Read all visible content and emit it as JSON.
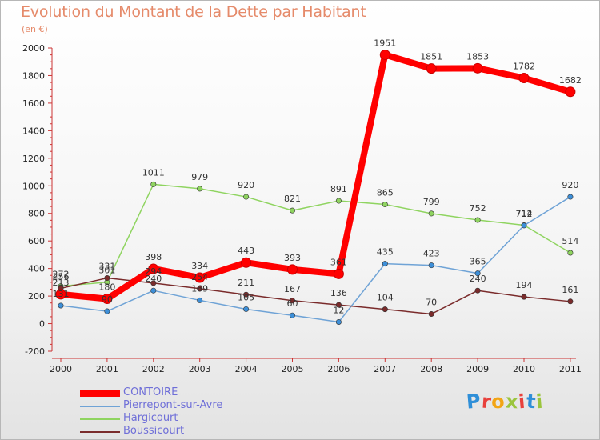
{
  "title": "Evolution du Montant de la Dette par Habitant",
  "subtitle": "(en €)",
  "logo": {
    "text": "Proxiti",
    "letters": [
      {
        "ch": "P",
        "color": "#2f8fd8"
      },
      {
        "ch": "r",
        "color": "#e8413c"
      },
      {
        "ch": "o",
        "color": "#f2a516"
      },
      {
        "ch": "x",
        "color": "#9bc53d"
      },
      {
        "ch": "i",
        "color": "#e8413c"
      },
      {
        "ch": "t",
        "color": "#2f8fd8"
      },
      {
        "ch": "i",
        "color": "#9bc53d"
      }
    ]
  },
  "chart_data": {
    "type": "line",
    "title": "Evolution du Montant de la Dette par Habitant",
    "subtitle": "(en €)",
    "xlabel": "",
    "ylabel": "",
    "x": [
      "2000",
      "2001",
      "2002",
      "2003",
      "2004",
      "2005",
      "2006",
      "2007",
      "2008",
      "2009",
      "2010",
      "2011"
    ],
    "ylim": [
      -200,
      2000
    ],
    "yticks": [
      -200,
      0,
      200,
      400,
      600,
      800,
      1000,
      1200,
      1400,
      1600,
      1800,
      2000
    ],
    "grid": false,
    "legend_position": "bottom-left",
    "series": [
      {
        "name": "Hargicourt",
        "color": "#8fd460",
        "marker": "#8fd460",
        "values": [
          272,
          301,
          1011,
          979,
          920,
          821,
          891,
          865,
          799,
          752,
          714,
          514
        ]
      },
      {
        "name": "Pierrepont-sur-Avre",
        "color": "#6fa3d6",
        "marker": "#3d8fd8",
        "values": [
          131,
          90,
          240,
          169,
          105,
          60,
          12,
          435,
          423,
          365,
          712,
          920
        ]
      },
      {
        "name": "Boussicourt",
        "color": "#7a2b2b",
        "marker": "#7a2b2b",
        "values": [
          256,
          331,
          294,
          254,
          211,
          167,
          136,
          104,
          70,
          240,
          194,
          161
        ]
      },
      {
        "name": "CONTOIRE",
        "color": "#ff0000",
        "marker": "#ff0000",
        "values": [
          213,
          180,
          398,
          334,
          443,
          393,
          361,
          1951,
          1851,
          1853,
          1782,
          1682
        ]
      }
    ],
    "data_labels": [
      {
        "series": "Hargicourt",
        "labels": [
          "272",
          "301",
          "1011",
          "979",
          "920",
          "821",
          "891",
          "865",
          "799",
          "752",
          "714",
          "514"
        ]
      },
      {
        "series": "Pierrepont-sur-Avre",
        "labels": [
          "131",
          "90",
          "240",
          "169",
          "105",
          "60",
          "12",
          "435",
          "423",
          "365",
          "712",
          "920"
        ]
      },
      {
        "series": "Boussicourt",
        "labels": [
          "256",
          "331",
          "294",
          "254",
          "211",
          "167",
          "136",
          "104",
          "70",
          "240",
          "194",
          "161"
        ]
      },
      {
        "series": "CONTOIRE",
        "labels": [
          "213",
          "180",
          "398",
          "334",
          "443",
          "393",
          "361",
          "1951",
          "1851",
          "1853",
          "1782",
          "1682"
        ]
      }
    ]
  },
  "legend": [
    {
      "name": "CONTOIRE",
      "color": "#ff0000"
    },
    {
      "name": "Pierrepont-sur-Avre",
      "color": "#6fa3d6"
    },
    {
      "name": "Hargicourt",
      "color": "#8fd460"
    },
    {
      "name": "Boussicourt",
      "color": "#7a2b2b"
    }
  ]
}
